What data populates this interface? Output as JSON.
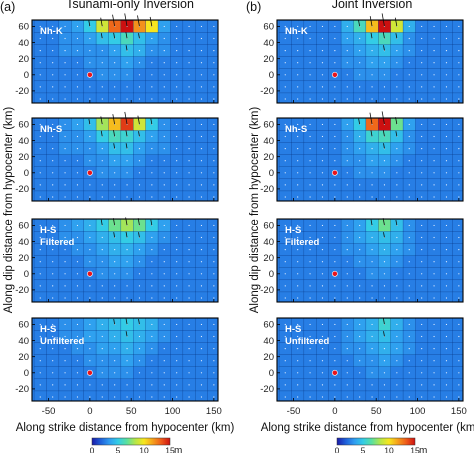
{
  "panels": [
    {
      "tag": "(a)",
      "title": "Tsunami-only Inversion"
    },
    {
      "tag": "(b)",
      "title": "Joint Inversion"
    }
  ],
  "rows": [
    {
      "lines": [
        "Nh-K"
      ]
    },
    {
      "lines": [
        "Nh-S"
      ]
    },
    {
      "lines": [
        "H-S",
        "Filtered"
      ]
    },
    {
      "lines": [
        "H-S",
        "Unfiltered"
      ]
    }
  ],
  "colorbar": {
    "ticks": [
      "0",
      "5",
      "10",
      "15"
    ],
    "unit": "m",
    "stops": [
      "#1a1aa8",
      "#1f5fd9",
      "#2f9cf0",
      "#33cce6",
      "#59e0a0",
      "#b5e649",
      "#f7e61e",
      "#f5a01c",
      "#ee5a1a",
      "#cc1010"
    ]
  },
  "chart_data": {
    "type": "heatmap",
    "xlabel": "Along strike distance from hypocenter (km)",
    "ylabel": "Along dip distance from hypocenter (km)",
    "xlim": [
      -70,
      155
    ],
    "ylim": [
      -35,
      68
    ],
    "xticks": [
      -50,
      0,
      50,
      100,
      150
    ],
    "xtick_labels": [
      "-50",
      "0",
      "50",
      "100",
      "150"
    ],
    "yticks": [
      -20,
      0,
      20,
      40,
      60
    ],
    "ytick_labels": [
      "-20",
      "0",
      "20",
      "40",
      "60"
    ],
    "last_xtick_label_right": "150",
    "value_unit": "m",
    "color_range": [
      0,
      15
    ],
    "hypocenter": [
      0,
      0
    ],
    "cells_x_center": [
      -60,
      -45,
      -30,
      -15,
      0,
      15,
      30,
      45,
      60,
      75,
      90,
      105,
      120,
      135,
      150
    ],
    "cells_y_center": [
      60,
      45,
      30,
      15,
      0,
      -15,
      -30
    ],
    "maps": [
      {
        "panel": 0,
        "row": 0,
        "slip": [
          [
            2.5,
            2.5,
            3,
            3.5,
            5,
            9,
            13,
            15,
            12,
            10,
            3.5,
            2.5,
            2.5,
            2.5,
            2.5
          ],
          [
            2.5,
            2.5,
            3,
            3,
            3.5,
            4.5,
            5,
            6,
            4.5,
            3.5,
            3,
            2.5,
            2.5,
            2.5,
            2.5
          ],
          [
            2.5,
            2.5,
            3,
            3,
            3,
            3,
            3.5,
            4.5,
            4,
            3,
            3,
            2.5,
            2.5,
            2.5,
            2.5
          ],
          [
            2.5,
            2.5,
            2.5,
            2.5,
            3,
            3,
            3,
            3.5,
            3,
            2.5,
            2.5,
            2.5,
            2.5,
            2.5,
            2.5
          ],
          [
            2.5,
            2.5,
            2.5,
            2.5,
            2.5,
            3,
            3,
            3,
            2.5,
            2.5,
            2.5,
            2.5,
            2.5,
            2.5,
            2.5
          ],
          [
            2.5,
            2.5,
            2.5,
            2.5,
            2.5,
            2.5,
            2.5,
            2.5,
            2.5,
            2.5,
            2.5,
            2.5,
            2.5,
            2.5,
            2.5
          ],
          [
            2.5,
            2.5,
            2.5,
            2.5,
            2.5,
            2.5,
            2.5,
            2.5,
            2.5,
            2.5,
            2.5,
            2.5,
            2.5,
            2.5,
            2.5
          ]
        ]
      },
      {
        "panel": 1,
        "row": 0,
        "slip": [
          [
            2.5,
            2.5,
            2.5,
            2.5,
            2.5,
            4,
            6,
            11,
            15,
            9,
            4,
            2.5,
            2.5,
            2.5,
            2.5
          ],
          [
            2.5,
            2.5,
            2.5,
            2.5,
            2.5,
            3.5,
            4,
            5,
            6,
            4.5,
            3,
            2.5,
            2.5,
            2.5,
            2.5
          ],
          [
            2.5,
            2.5,
            2.5,
            2.5,
            2.5,
            3,
            3.5,
            4,
            4.5,
            3.5,
            3,
            2.5,
            2.5,
            2.5,
            2.5
          ],
          [
            2.5,
            2.5,
            2.5,
            2.5,
            2.5,
            3,
            3,
            3.5,
            3.5,
            3,
            2.5,
            2.5,
            2.5,
            2.5,
            2.5
          ],
          [
            2.5,
            2.5,
            2.5,
            2.5,
            2.5,
            2.5,
            3,
            3,
            3,
            2.5,
            2.5,
            2.5,
            2.5,
            2.5,
            2.5
          ],
          [
            2.5,
            2.5,
            2.5,
            2.5,
            2.5,
            2.5,
            2.5,
            2.5,
            2.5,
            2.5,
            2.5,
            2.5,
            2.5,
            2.5,
            2.5
          ],
          [
            2.5,
            2.5,
            2.5,
            2.5,
            2.5,
            2.5,
            2.5,
            2.5,
            2.5,
            2.5,
            2.5,
            2.5,
            2.5,
            2.5,
            2.5
          ]
        ]
      },
      {
        "panel": 0,
        "row": 1,
        "slip": [
          [
            2.5,
            2.5,
            3,
            3.5,
            4.5,
            8,
            11,
            14,
            9,
            5,
            3,
            2.5,
            2.5,
            2.5,
            2.5
          ],
          [
            2.5,
            2.5,
            3,
            3,
            3.5,
            5,
            6,
            5.5,
            4.5,
            3.5,
            3,
            2.5,
            2.5,
            2.5,
            2.5
          ],
          [
            2.5,
            2.5,
            3,
            3,
            3,
            3.5,
            4.5,
            4.5,
            3.5,
            3,
            3,
            2.5,
            2.5,
            2.5,
            2.5
          ],
          [
            2.5,
            2.5,
            2.5,
            2.5,
            3,
            3,
            3.5,
            3.5,
            3,
            2.5,
            2.5,
            2.5,
            2.5,
            2.5,
            2.5
          ],
          [
            2.5,
            2.5,
            2.5,
            2.5,
            2.5,
            3,
            3,
            3,
            2.5,
            2.5,
            2.5,
            2.5,
            2.5,
            2.5,
            2.5
          ],
          [
            2.5,
            2.5,
            2.5,
            2.5,
            2.5,
            2.5,
            2.5,
            2.5,
            2.5,
            2.5,
            2.5,
            2.5,
            2.5,
            2.5,
            2.5
          ],
          [
            2.5,
            2.5,
            2.5,
            2.5,
            2.5,
            2.5,
            2.5,
            2.5,
            2.5,
            2.5,
            2.5,
            2.5,
            2.5,
            2.5,
            2.5
          ]
        ]
      },
      {
        "panel": 1,
        "row": 1,
        "slip": [
          [
            2.5,
            2.5,
            2.5,
            2.5,
            2.5,
            3.5,
            5,
            13,
            15,
            7,
            3.5,
            2.5,
            2.5,
            2.5,
            2.5
          ],
          [
            2.5,
            2.5,
            2.5,
            2.5,
            2.5,
            3,
            4,
            5.5,
            6,
            4.5,
            3,
            2.5,
            2.5,
            2.5,
            2.5
          ],
          [
            2.5,
            2.5,
            2.5,
            2.5,
            2.5,
            3,
            3.5,
            4,
            4.5,
            3.5,
            3,
            2.5,
            2.5,
            2.5,
            2.5
          ],
          [
            2.5,
            2.5,
            2.5,
            2.5,
            2.5,
            3,
            3,
            3.5,
            3.5,
            3,
            2.5,
            2.5,
            2.5,
            2.5,
            2.5
          ],
          [
            2.5,
            2.5,
            2.5,
            2.5,
            2.5,
            2.5,
            3,
            3,
            3,
            2.5,
            2.5,
            2.5,
            2.5,
            2.5,
            2.5
          ],
          [
            2.5,
            2.5,
            2.5,
            2.5,
            2.5,
            2.5,
            2.5,
            2.5,
            2.5,
            2.5,
            2.5,
            2.5,
            2.5,
            2.5,
            2.5
          ],
          [
            2.5,
            2.5,
            2.5,
            2.5,
            2.5,
            2.5,
            2.5,
            2.5,
            2.5,
            2.5,
            2.5,
            2.5,
            2.5,
            2.5,
            2.5
          ]
        ]
      },
      {
        "panel": 0,
        "row": 2,
        "slip": [
          [
            2.5,
            2.5,
            3,
            3.5,
            4,
            5,
            7,
            8,
            7,
            5,
            3.5,
            2.5,
            2.5,
            2.5,
            2.5
          ],
          [
            2.5,
            2.5,
            3,
            3,
            3.5,
            4,
            4.5,
            5,
            4.5,
            3.5,
            3,
            2.5,
            2.5,
            2.5,
            2.5
          ],
          [
            2.5,
            2.5,
            2.5,
            3,
            3,
            3.5,
            4,
            4,
            3.5,
            3,
            2.5,
            2.5,
            2.5,
            2.5,
            2.5
          ],
          [
            2.5,
            2.5,
            2.5,
            2.5,
            3,
            3,
            3.5,
            3.5,
            3,
            2.5,
            2.5,
            2.5,
            2.5,
            2.5,
            2.5
          ],
          [
            2.5,
            2.5,
            2.5,
            2.5,
            2.5,
            3,
            3,
            3,
            2.5,
            2.5,
            2.5,
            2.5,
            2.5,
            2.5,
            2.5
          ],
          [
            2.5,
            2.5,
            2.5,
            2.5,
            2.5,
            2.5,
            2.5,
            2.5,
            2.5,
            2.5,
            2.5,
            2.5,
            2.5,
            2.5,
            2.5
          ],
          [
            2.5,
            2.5,
            2.5,
            2.5,
            2.5,
            2.5,
            2.5,
            2.5,
            2.5,
            2.5,
            2.5,
            2.5,
            2.5,
            2.5,
            2.5
          ]
        ]
      },
      {
        "panel": 1,
        "row": 2,
        "slip": [
          [
            2.5,
            2.5,
            2.5,
            2.5,
            2.5,
            3,
            3.5,
            5,
            7,
            4.5,
            3,
            2.5,
            2.5,
            2.5,
            2.5
          ],
          [
            2.5,
            2.5,
            2.5,
            2.5,
            2.5,
            3,
            3.5,
            4,
            4.5,
            4,
            3,
            2.5,
            2.5,
            2.5,
            2.5
          ],
          [
            2.5,
            2.5,
            2.5,
            2.5,
            2.5,
            3,
            3,
            3.5,
            4,
            3.5,
            3,
            2.5,
            2.5,
            2.5,
            2.5
          ],
          [
            2.5,
            2.5,
            2.5,
            2.5,
            2.5,
            2.5,
            3,
            3,
            3.5,
            3,
            2.5,
            2.5,
            2.5,
            2.5,
            2.5
          ],
          [
            2.5,
            2.5,
            2.5,
            2.5,
            2.5,
            2.5,
            2.5,
            3,
            3,
            2.5,
            2.5,
            2.5,
            2.5,
            2.5,
            2.5
          ],
          [
            2.5,
            2.5,
            2.5,
            2.5,
            2.5,
            2.5,
            2.5,
            2.5,
            2.5,
            2.5,
            2.5,
            2.5,
            2.5,
            2.5,
            2.5
          ],
          [
            2.5,
            2.5,
            2.5,
            2.5,
            2.5,
            2.5,
            2.5,
            2.5,
            2.5,
            2.5,
            2.5,
            2.5,
            2.5,
            2.5,
            2.5
          ]
        ]
      },
      {
        "panel": 0,
        "row": 3,
        "slip": [
          [
            2.5,
            2.5,
            3,
            3,
            3.5,
            4,
            4.5,
            5,
            4.5,
            4,
            3,
            2.5,
            2.5,
            2.5,
            2.5
          ],
          [
            2.5,
            2.5,
            3,
            3,
            3.5,
            3.5,
            4,
            4.5,
            4,
            3.5,
            3,
            2.5,
            2.5,
            2.5,
            2.5
          ],
          [
            2.5,
            2.5,
            2.5,
            3,
            3,
            3.5,
            3.5,
            4,
            3.5,
            3,
            2.5,
            2.5,
            2.5,
            2.5,
            2.5
          ],
          [
            2.5,
            2.5,
            2.5,
            2.5,
            3,
            3,
            3,
            3.5,
            3,
            2.5,
            2.5,
            2.5,
            2.5,
            2.5,
            2.5
          ],
          [
            2.5,
            2.5,
            2.5,
            2.5,
            2.5,
            3,
            3,
            3,
            2.5,
            2.5,
            2.5,
            2.5,
            2.5,
            2.5,
            2.5
          ],
          [
            2.5,
            2.5,
            2.5,
            2.5,
            2.5,
            2.5,
            2.5,
            2.5,
            2.5,
            2.5,
            2.5,
            2.5,
            2.5,
            2.5,
            2.5
          ],
          [
            2.5,
            2.5,
            2.5,
            2.5,
            2.5,
            2.5,
            2.5,
            2.5,
            2.5,
            2.5,
            2.5,
            2.5,
            2.5,
            2.5,
            2.5
          ]
        ]
      },
      {
        "panel": 1,
        "row": 3,
        "slip": [
          [
            2.5,
            2.5,
            2.5,
            2.5,
            2.5,
            3,
            3.5,
            4,
            5.5,
            4,
            3,
            2.5,
            2.5,
            2.5,
            2.5
          ],
          [
            2.5,
            2.5,
            2.5,
            2.5,
            2.5,
            3,
            3.5,
            4,
            4.5,
            3.5,
            3,
            2.5,
            2.5,
            2.5,
            2.5
          ],
          [
            2.5,
            2.5,
            2.5,
            2.5,
            2.5,
            3,
            3,
            3.5,
            4,
            3.5,
            3,
            2.5,
            2.5,
            2.5,
            2.5
          ],
          [
            2.5,
            2.5,
            2.5,
            2.5,
            2.5,
            2.5,
            3,
            3,
            3.5,
            3,
            2.5,
            2.5,
            2.5,
            2.5,
            2.5
          ],
          [
            2.5,
            2.5,
            2.5,
            2.5,
            2.5,
            2.5,
            2.5,
            3,
            3,
            2.5,
            2.5,
            2.5,
            2.5,
            2.5,
            2.5
          ],
          [
            2.5,
            2.5,
            2.5,
            2.5,
            2.5,
            2.5,
            2.5,
            2.5,
            2.5,
            2.5,
            2.5,
            2.5,
            2.5,
            2.5,
            2.5
          ],
          [
            2.5,
            2.5,
            2.5,
            2.5,
            2.5,
            2.5,
            2.5,
            2.5,
            2.5,
            2.5,
            2.5,
            2.5,
            2.5,
            2.5,
            2.5
          ]
        ]
      }
    ]
  }
}
